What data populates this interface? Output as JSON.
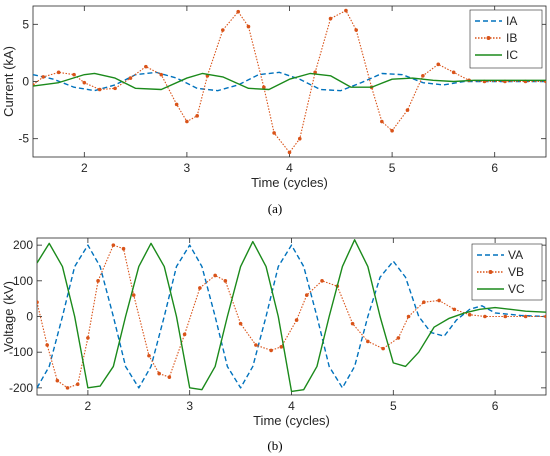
{
  "colors": {
    "a": "#0072BD",
    "b": "#D95319",
    "c": "#1B8A1B"
  },
  "chart_data": [
    {
      "type": "line",
      "caption": "(a)",
      "xlabel": "Time (cycles)",
      "ylabel": "Current (kA)",
      "xlim": [
        1.5,
        6.5
      ],
      "ylim": [
        -6.6,
        6.6
      ],
      "xticks": [
        2,
        3,
        4,
        5,
        6
      ],
      "yticks": [
        -5,
        0,
        5
      ],
      "legend": "top-right",
      "series": [
        {
          "name": "IA",
          "style": "dashed",
          "color_key": "a",
          "x": [
            1.5,
            1.7,
            1.9,
            2.1,
            2.3,
            2.5,
            2.7,
            2.9,
            3.1,
            3.3,
            3.5,
            3.7,
            3.9,
            4.1,
            4.3,
            4.5,
            4.7,
            4.9,
            5.1,
            5.3,
            5.5,
            5.7,
            5.9,
            6.1,
            6.3,
            6.5
          ],
          "y": [
            0.6,
            0.2,
            -0.5,
            -0.8,
            -0.3,
            0.6,
            0.8,
            0.3,
            -0.6,
            -0.8,
            -0.3,
            0.6,
            0.8,
            0.2,
            -0.7,
            -0.8,
            -0.1,
            0.7,
            0.6,
            -0.1,
            -0.3,
            0,
            0,
            0,
            0,
            0
          ]
        },
        {
          "name": "IB",
          "style": "dotted-marker",
          "color_key": "b",
          "x": [
            1.5,
            1.6,
            1.75,
            1.9,
            2.0,
            2.15,
            2.3,
            2.45,
            2.6,
            2.75,
            2.9,
            3.0,
            3.1,
            3.2,
            3.35,
            3.5,
            3.6,
            3.75,
            3.85,
            4.0,
            4.1,
            4.25,
            4.4,
            4.55,
            4.65,
            4.8,
            4.9,
            5.0,
            5.15,
            5.3,
            5.45,
            5.6,
            5.75,
            5.9,
            6.1,
            6.3,
            6.5
          ],
          "y": [
            -0.3,
            0.4,
            0.8,
            0.6,
            -0.1,
            -0.7,
            -0.6,
            0.3,
            1.3,
            0.6,
            -2.0,
            -3.5,
            -3.0,
            0.5,
            4.5,
            6.1,
            4.8,
            -0.5,
            -4.5,
            -6.2,
            -5.0,
            0.8,
            5.5,
            6.2,
            4.5,
            -0.5,
            -3.5,
            -4.3,
            -2.5,
            0.5,
            1.5,
            0.8,
            0.1,
            0,
            0,
            0,
            0
          ]
        },
        {
          "name": "IC",
          "style": "solid",
          "color_key": "c",
          "x": [
            1.5,
            1.75,
            2.0,
            2.1,
            2.3,
            2.5,
            2.75,
            3.0,
            3.15,
            3.35,
            3.6,
            3.8,
            4.0,
            4.2,
            4.4,
            4.6,
            4.8,
            5.0,
            5.2,
            5.4,
            5.6,
            5.8,
            6.0,
            6.5
          ],
          "y": [
            -0.4,
            -0.1,
            0.6,
            0.7,
            0.3,
            -0.6,
            -0.7,
            0.3,
            0.7,
            0.4,
            -0.6,
            -0.7,
            0.2,
            0.7,
            0.5,
            -0.5,
            -0.5,
            0.2,
            0.3,
            0.1,
            0,
            0.1,
            0.1,
            0.1
          ]
        }
      ]
    },
    {
      "type": "line",
      "caption": "(b)",
      "xlabel": "Time (cycles)",
      "ylabel": "Voltage (kV)",
      "xlim": [
        1.5,
        6.5
      ],
      "ylim": [
        -220,
        220
      ],
      "xticks": [
        2,
        3,
        4,
        5,
        6
      ],
      "yticks": [
        -200,
        -100,
        0,
        100,
        200
      ],
      "legend": "top-right",
      "series": [
        {
          "name": "VA",
          "style": "dashed",
          "color_key": "a",
          "x": [
            1.5,
            1.62,
            1.75,
            1.87,
            2.0,
            2.12,
            2.25,
            2.37,
            2.5,
            2.62,
            2.75,
            2.87,
            3.0,
            3.12,
            3.25,
            3.37,
            3.5,
            3.62,
            3.75,
            3.87,
            4.0,
            4.12,
            4.25,
            4.37,
            4.5,
            4.62,
            4.75,
            4.87,
            5.0,
            5.12,
            5.25,
            5.37,
            5.5,
            5.62,
            5.75,
            5.87,
            6.0,
            6.25,
            6.5
          ],
          "y": [
            -200,
            -140,
            0,
            140,
            200,
            140,
            0,
            -140,
            -200,
            -140,
            0,
            140,
            200,
            140,
            0,
            -140,
            -200,
            -140,
            0,
            140,
            200,
            140,
            0,
            -140,
            -200,
            -140,
            0,
            110,
            155,
            110,
            0,
            -45,
            -55,
            -10,
            20,
            30,
            10,
            3,
            0
          ]
        },
        {
          "name": "VB",
          "style": "dotted-marker",
          "color_key": "b",
          "x": [
            1.5,
            1.6,
            1.7,
            1.8,
            1.9,
            2.0,
            2.1,
            2.25,
            2.35,
            2.45,
            2.6,
            2.7,
            2.8,
            2.95,
            3.1,
            3.25,
            3.35,
            3.5,
            3.65,
            3.8,
            3.9,
            4.05,
            4.15,
            4.3,
            4.45,
            4.6,
            4.75,
            4.9,
            5.05,
            5.15,
            5.3,
            5.45,
            5.6,
            5.75,
            5.9,
            6.1,
            6.3,
            6.5
          ],
          "y": [
            40,
            -80,
            -180,
            -200,
            -190,
            -60,
            100,
            200,
            190,
            60,
            -110,
            -160,
            -170,
            -50,
            80,
            115,
            100,
            -20,
            -80,
            -95,
            -85,
            -10,
            60,
            100,
            85,
            -20,
            -70,
            -90,
            -60,
            0,
            40,
            45,
            20,
            5,
            0,
            0,
            0,
            0
          ]
        },
        {
          "name": "VC",
          "style": "solid",
          "color_key": "c",
          "x": [
            1.5,
            1.62,
            1.75,
            1.87,
            2.0,
            2.12,
            2.25,
            2.37,
            2.5,
            2.62,
            2.75,
            2.87,
            3.0,
            3.12,
            3.25,
            3.37,
            3.5,
            3.62,
            3.75,
            3.87,
            4.0,
            4.12,
            4.25,
            4.37,
            4.5,
            4.62,
            4.75,
            4.87,
            5.0,
            5.12,
            5.25,
            5.4,
            5.55,
            5.7,
            5.85,
            6.0,
            6.15,
            6.3,
            6.5
          ],
          "y": [
            150,
            205,
            140,
            0,
            -200,
            -195,
            -140,
            0,
            140,
            205,
            140,
            0,
            -200,
            -205,
            -140,
            0,
            140,
            210,
            140,
            0,
            -210,
            -205,
            -140,
            0,
            140,
            215,
            140,
            0,
            -130,
            -140,
            -100,
            -30,
            -5,
            10,
            20,
            25,
            20,
            15,
            12
          ]
        }
      ]
    }
  ]
}
